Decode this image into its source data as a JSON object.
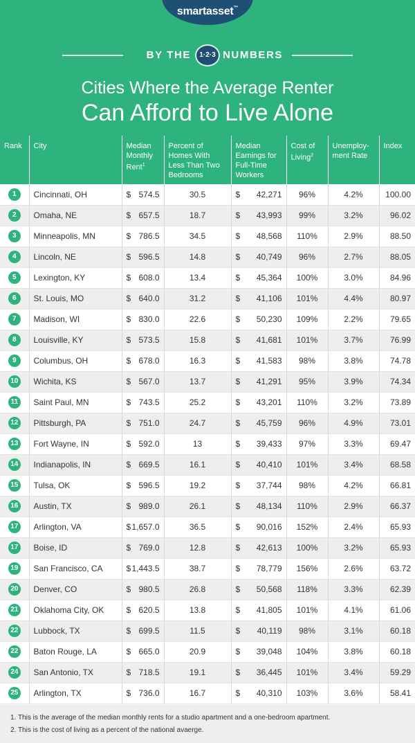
{
  "brand": {
    "name": "smartasset",
    "tm": "™"
  },
  "numbers_banner": {
    "left": "BY THE",
    "badge": "1·2·3",
    "right": "NUMBERS"
  },
  "title": {
    "line1": "Cities Where the Average Renter",
    "line2": "Can Afford to Live Alone"
  },
  "headers": {
    "rank": "Rank",
    "city": "City",
    "rent": "Median Monthly Rent",
    "rent_note": "1",
    "homes": "Percent of Homes With Less Than Two Bedrooms",
    "earnings": "Median Earnings for Full-Time Workers",
    "col": "Cost of Living",
    "col_note": "2",
    "unemp": "Unemploy- ment Rate",
    "index": "Index"
  },
  "rows": [
    {
      "rank": "1",
      "city": "Cincinnati, OH",
      "rent": "574.5",
      "homes": "30.5",
      "earn": "42,271",
      "col": "96%",
      "unemp": "4.2%",
      "index": "100.00"
    },
    {
      "rank": "2",
      "city": "Omaha, NE",
      "rent": "657.5",
      "homes": "18.7",
      "earn": "43,993",
      "col": "99%",
      "unemp": "3.2%",
      "index": "96.02"
    },
    {
      "rank": "3",
      "city": "Minneapolis, MN",
      "rent": "786.5",
      "homes": "34.5",
      "earn": "48,568",
      "col": "110%",
      "unemp": "2.9%",
      "index": "88.50"
    },
    {
      "rank": "4",
      "city": "Lincoln, NE",
      "rent": "596.5",
      "homes": "14.8",
      "earn": "40,749",
      "col": "96%",
      "unemp": "2.7%",
      "index": "88.05"
    },
    {
      "rank": "5",
      "city": "Lexington, KY",
      "rent": "608.0",
      "homes": "13.4",
      "earn": "45,364",
      "col": "100%",
      "unemp": "3.0%",
      "index": "84.96"
    },
    {
      "rank": "6",
      "city": "St. Louis, MO",
      "rent": "640.0",
      "homes": "31.2",
      "earn": "41,106",
      "col": "101%",
      "unemp": "4.4%",
      "index": "80.97"
    },
    {
      "rank": "7",
      "city": "Madison, WI",
      "rent": "830.0",
      "homes": "22.6",
      "earn": "50,230",
      "col": "109%",
      "unemp": "2.2%",
      "index": "79.65"
    },
    {
      "rank": "8",
      "city": "Louisville, KY",
      "rent": "573.5",
      "homes": "15.8",
      "earn": "41,681",
      "col": "101%",
      "unemp": "3.7%",
      "index": "76.99"
    },
    {
      "rank": "9",
      "city": "Columbus, OH",
      "rent": "678.0",
      "homes": "16.3",
      "earn": "41,583",
      "col": "98%",
      "unemp": "3.8%",
      "index": "74.78"
    },
    {
      "rank": "10",
      "city": "Wichita, KS",
      "rent": "567.0",
      "homes": "13.7",
      "earn": "41,291",
      "col": "95%",
      "unemp": "3.9%",
      "index": "74.34"
    },
    {
      "rank": "11",
      "city": "Saint Paul, MN",
      "rent": "743.5",
      "homes": "25.2",
      "earn": "43,201",
      "col": "110%",
      "unemp": "3.2%",
      "index": "73.89"
    },
    {
      "rank": "12",
      "city": "Pittsburgh, PA",
      "rent": "751.0",
      "homes": "24.7",
      "earn": "45,759",
      "col": "96%",
      "unemp": "4.9%",
      "index": "73.01"
    },
    {
      "rank": "13",
      "city": "Fort Wayne, IN",
      "rent": "592.0",
      "homes": "13",
      "earn": "39,433",
      "col": "97%",
      "unemp": "3.3%",
      "index": "69.47"
    },
    {
      "rank": "14",
      "city": "Indianapolis, IN",
      "rent": "669.5",
      "homes": "16.1",
      "earn": "40,410",
      "col": "101%",
      "unemp": "3.4%",
      "index": "68.58"
    },
    {
      "rank": "15",
      "city": "Tulsa, OK",
      "rent": "596.5",
      "homes": "19.2",
      "earn": "37,744",
      "col": "98%",
      "unemp": "4.2%",
      "index": "66.81"
    },
    {
      "rank": "16",
      "city": "Austin, TX",
      "rent": "989.0",
      "homes": "26.1",
      "earn": "48,134",
      "col": "110%",
      "unemp": "2.9%",
      "index": "66.37"
    },
    {
      "rank": "17",
      "city": "Arlington, VA",
      "rent": "1,657.0",
      "homes": "36.5",
      "earn": "90,016",
      "col": "152%",
      "unemp": "2.4%",
      "index": "65.93"
    },
    {
      "rank": "17",
      "city": "Boise, ID",
      "rent": "769.0",
      "homes": "12.8",
      "earn": "42,613",
      "col": "100%",
      "unemp": "3.2%",
      "index": "65.93"
    },
    {
      "rank": "19",
      "city": "San Francisco, CA",
      "rent": "1,443.5",
      "homes": "38.7",
      "earn": "78,779",
      "col": "156%",
      "unemp": "2.6%",
      "index": "63.72"
    },
    {
      "rank": "20",
      "city": "Denver, CO",
      "rent": "980.5",
      "homes": "26.8",
      "earn": "50,568",
      "col": "118%",
      "unemp": "3.3%",
      "index": "62.39"
    },
    {
      "rank": "21",
      "city": "Oklahoma City, OK",
      "rent": "620.5",
      "homes": "13.8",
      "earn": "41,805",
      "col": "101%",
      "unemp": "4.1%",
      "index": "61.06"
    },
    {
      "rank": "22",
      "city": "Lubbock, TX",
      "rent": "699.5",
      "homes": "11.5",
      "earn": "40,119",
      "col": "98%",
      "unemp": "3.1%",
      "index": "60.18"
    },
    {
      "rank": "22",
      "city": "Baton Rouge, LA",
      "rent": "665.0",
      "homes": "20.9",
      "earn": "39,048",
      "col": "104%",
      "unemp": "3.8%",
      "index": "60.18"
    },
    {
      "rank": "24",
      "city": "San Antonio, TX",
      "rent": "718.5",
      "homes": "19.1",
      "earn": "36,445",
      "col": "101%",
      "unemp": "3.4%",
      "index": "59.29"
    },
    {
      "rank": "25",
      "city": "Arlington, TX",
      "rent": "736.0",
      "homes": "16.7",
      "earn": "40,310",
      "col": "103%",
      "unemp": "3.6%",
      "index": "58.41"
    }
  ],
  "currency": "$",
  "footnotes": [
    "1. This is the average of the median monthly rents for a studio apartment and a one-bedroom apartment.",
    "2. This is the cost of living as a percent of the national avaerge."
  ]
}
